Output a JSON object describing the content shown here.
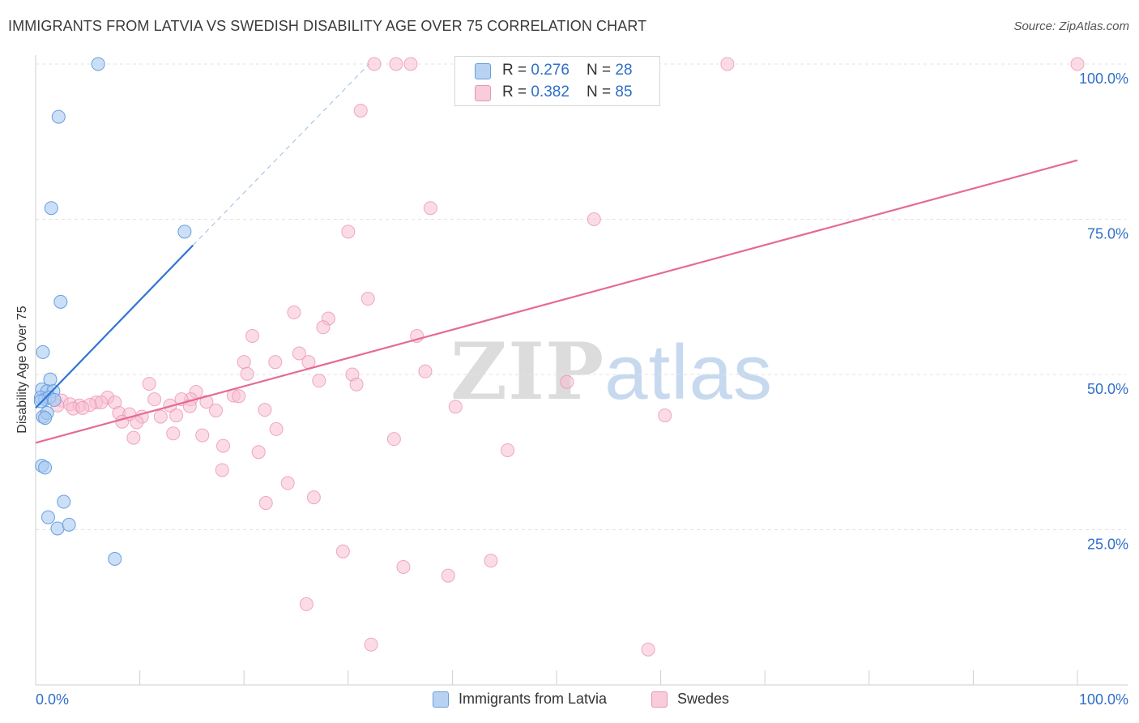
{
  "header": {
    "title": "IMMIGRANTS FROM LATVIA VS SWEDISH DISABILITY AGE OVER 75 CORRELATION CHART",
    "source": "Source: ZipAtlas.com"
  },
  "watermark": {
    "zip": "ZIP",
    "atlas": "atlas"
  },
  "colors": {
    "blue_fill": "#a9c9f0",
    "blue_stroke": "#6a9ee0",
    "blue_line": "#2f74d6",
    "pink_fill": "#f7c0d2",
    "pink_stroke": "#ec94b2",
    "pink_line": "#e56a97",
    "grid": "#e3e3e3",
    "tick_label": "#2f6fc9"
  },
  "legend": {
    "series": [
      {
        "r_label": "R = ",
        "r_value": "0.276",
        "n_label": "N = ",
        "n_value": "28"
      },
      {
        "r_label": "R = ",
        "r_value": "0.382",
        "n_label": "N = ",
        "n_value": "85"
      }
    ]
  },
  "chart_data": {
    "type": "scatter",
    "title": "IMMIGRANTS FROM LATVIA VS SWEDISH DISABILITY AGE OVER 75 CORRELATION CHART",
    "xlabel": "",
    "ylabel": "Disability Age Over 75",
    "xlim": [
      0,
      100
    ],
    "ylim": [
      0,
      100
    ],
    "x_tick_labels": [
      {
        "value": 0,
        "label": "0.0%"
      },
      {
        "value": 100,
        "label": "100.0%"
      }
    ],
    "y_tick_labels": [
      {
        "value": 25,
        "label": "25.0%"
      },
      {
        "value": 50,
        "label": "50.0%"
      },
      {
        "value": 75,
        "label": "75.0%"
      },
      {
        "value": 100,
        "label": "100.0%"
      }
    ],
    "grid": true,
    "legend_position": "top-center",
    "series": [
      {
        "name": "Immigrants from Latvia",
        "color": "blue",
        "R": 0.276,
        "N": 28,
        "trend": {
          "x0": 0,
          "y0": 44.6,
          "x1": 15.1,
          "y1": 70.8,
          "dash_to_x": 32,
          "dash_to_y": 100
        },
        "points": [
          [
            6,
            100
          ],
          [
            2.2,
            91.5
          ],
          [
            1.5,
            76.8
          ],
          [
            14.3,
            73
          ],
          [
            2.4,
            61.7
          ],
          [
            0.7,
            53.6
          ],
          [
            1.4,
            49.2
          ],
          [
            0.6,
            47.6
          ],
          [
            1.1,
            47.3
          ],
          [
            1.7,
            47.3
          ],
          [
            0.5,
            46.3
          ],
          [
            0.9,
            46
          ],
          [
            1.3,
            46.3
          ],
          [
            0.5,
            45.7
          ],
          [
            1.8,
            45.9
          ],
          [
            0.7,
            43.2
          ],
          [
            1.1,
            43.8
          ],
          [
            0.9,
            43
          ],
          [
            0.6,
            35.3
          ],
          [
            0.9,
            35
          ],
          [
            2.7,
            29.5
          ],
          [
            1.2,
            27
          ],
          [
            2.1,
            25.2
          ],
          [
            3.2,
            25.8
          ],
          [
            7.6,
            20.3
          ]
        ]
      },
      {
        "name": "Swedes",
        "color": "pink",
        "R": 0.382,
        "N": 85,
        "trend": {
          "x0": 0,
          "y0": 39.0,
          "x1": 100,
          "y1": 84.5
        },
        "points": [
          [
            32.5,
            100
          ],
          [
            34.6,
            100
          ],
          [
            36,
            100
          ],
          [
            53.9,
            100
          ],
          [
            66.4,
            100
          ],
          [
            100,
            100
          ],
          [
            31.2,
            92.5
          ],
          [
            37.9,
            76.8
          ],
          [
            53.6,
            75
          ],
          [
            30,
            73
          ],
          [
            31.9,
            62.2
          ],
          [
            24.8,
            60
          ],
          [
            28.1,
            59
          ],
          [
            27.6,
            57.6
          ],
          [
            20.8,
            56.2
          ],
          [
            36.6,
            56.2
          ],
          [
            25.3,
            53.4
          ],
          [
            20,
            52
          ],
          [
            23,
            52
          ],
          [
            26.2,
            52
          ],
          [
            20.3,
            50.1
          ],
          [
            30.4,
            50
          ],
          [
            37.4,
            50.5
          ],
          [
            27.2,
            49
          ],
          [
            10.9,
            48.5
          ],
          [
            30.8,
            48.4
          ],
          [
            51,
            48.8
          ],
          [
            15.4,
            47.2
          ],
          [
            19,
            46.6
          ],
          [
            19.5,
            46.5
          ],
          [
            6.9,
            46.3
          ],
          [
            11.4,
            46
          ],
          [
            14.9,
            46
          ],
          [
            14,
            46
          ],
          [
            2.5,
            45.8
          ],
          [
            5.8,
            45.5
          ],
          [
            6.3,
            45.5
          ],
          [
            7.6,
            45.5
          ],
          [
            16.4,
            45.6
          ],
          [
            2.1,
            45
          ],
          [
            3.3,
            45.2
          ],
          [
            4.2,
            45
          ],
          [
            5.2,
            45.1
          ],
          [
            12.9,
            45
          ],
          [
            3.6,
            44.5
          ],
          [
            4.5,
            44.6
          ],
          [
            8,
            43.8
          ],
          [
            9,
            43.6
          ],
          [
            12,
            43.2
          ],
          [
            13.5,
            43.4
          ],
          [
            14.8,
            44.9
          ],
          [
            17.3,
            44.2
          ],
          [
            22,
            44.3
          ],
          [
            40.3,
            44.8
          ],
          [
            10.2,
            43.2
          ],
          [
            8.3,
            42.4
          ],
          [
            9.7,
            42.3
          ],
          [
            23.1,
            41.2
          ],
          [
            13.2,
            40.5
          ],
          [
            16,
            40.2
          ],
          [
            9.4,
            39.8
          ],
          [
            34.4,
            39.6
          ],
          [
            18,
            38.5
          ],
          [
            21.4,
            37.5
          ],
          [
            45.3,
            37.8
          ],
          [
            60.4,
            43.4
          ],
          [
            17.9,
            34.6
          ],
          [
            24.2,
            32.5
          ],
          [
            26.7,
            30.2
          ],
          [
            22.1,
            29.3
          ],
          [
            29.5,
            21.5
          ],
          [
            43.7,
            20
          ],
          [
            35.3,
            19
          ],
          [
            39.6,
            17.6
          ],
          [
            26,
            13
          ],
          [
            32.2,
            6.5
          ],
          [
            58.8,
            5.7
          ]
        ]
      }
    ]
  },
  "bottom_legend": {
    "items": [
      {
        "label": "Immigrants from Latvia"
      },
      {
        "label": "Swedes"
      }
    ]
  }
}
